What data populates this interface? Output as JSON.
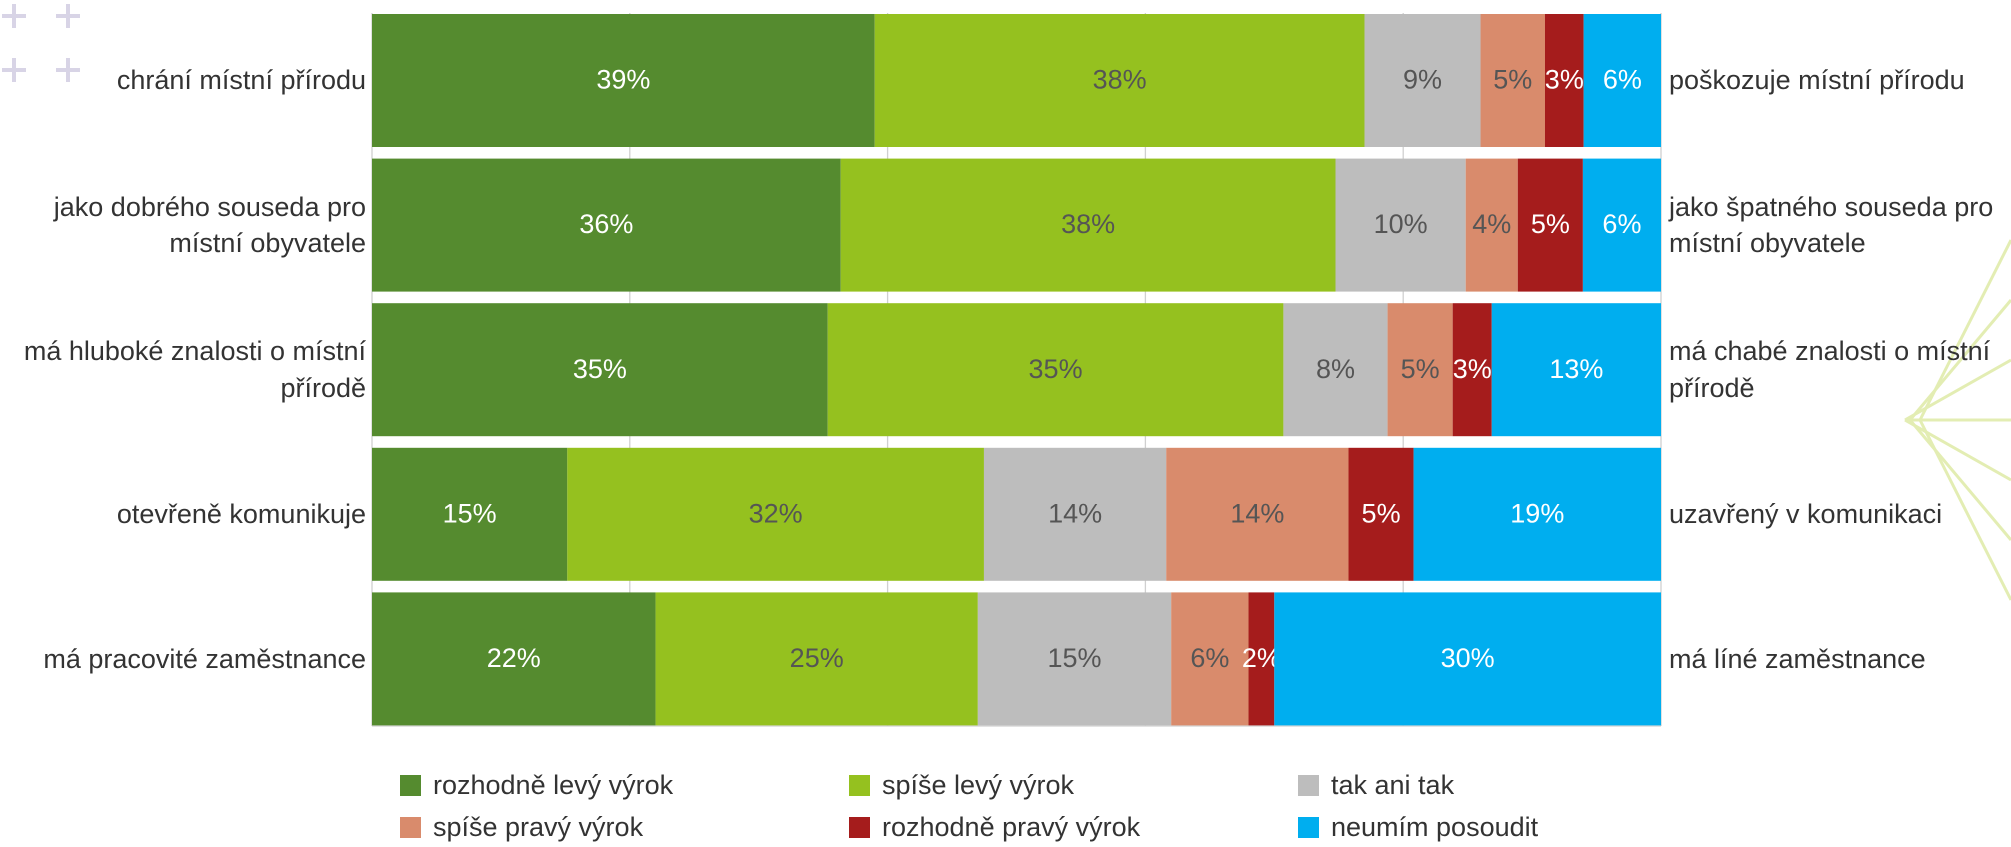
{
  "chart_data": {
    "type": "percent-stacked-hbar",
    "categories": [
      "chrání místní přírodu",
      "jako dobrého souseda pro místní obyvatele",
      "má hluboké znalosti o místní přírodě",
      "otevřeně komunikuje",
      "má pracovité zaměstnance"
    ],
    "right_categories": [
      "poškozuje místní přírodu",
      "jako špatného souseda pro místní obyvatele",
      "má chabé znalosti o místní přírodě",
      "uzavřený v komunikaci",
      "má líné zaměstnance"
    ],
    "xlim": [
      0,
      100
    ],
    "xticks": [
      0,
      20,
      40,
      60,
      80,
      100
    ],
    "grid": true,
    "series": [
      {
        "name": "rozhodně levý výrok",
        "color": "#558b2f",
        "label_color": "#ffffff",
        "values": [
          39,
          36,
          35,
          15,
          22
        ],
        "value_labels": [
          "39%",
          "36%",
          "35%",
          "15%",
          "22%"
        ]
      },
      {
        "name": "spíše levý výrok",
        "color": "#95c11f",
        "label_color": "#555555",
        "values": [
          38,
          38,
          35,
          32,
          25
        ],
        "value_labels": [
          "38%",
          "38%",
          "35%",
          "32%",
          "25%"
        ]
      },
      {
        "name": "tak ani tak",
        "color": "#bdbdbd",
        "label_color": "#555555",
        "values": [
          9,
          10,
          8,
          14,
          15
        ],
        "value_labels": [
          "9%",
          "10%",
          "8%",
          "14%",
          "15%"
        ]
      },
      {
        "name": "spíše pravý výrok",
        "color": "#d98b6c",
        "label_color": "#555555",
        "values": [
          5,
          4,
          5,
          14,
          6
        ],
        "value_labels": [
          "5%",
          "4%",
          "5%",
          "14%",
          "6%"
        ]
      },
      {
        "name": "rozhodně pravý výrok",
        "color": "#a51c1c",
        "label_color": "#ffffff",
        "values": [
          3,
          5,
          3,
          5,
          2
        ],
        "value_labels": [
          "3%",
          "5%",
          "3%",
          "5%",
          "2%"
        ]
      },
      {
        "name": "neumím posoudit",
        "color": "#00aeef",
        "label_color": "#ffffff",
        "values": [
          6,
          6,
          13,
          19,
          30
        ],
        "value_labels": [
          "6%",
          "6%",
          "13%",
          "19%",
          "30%"
        ]
      }
    ]
  }
}
